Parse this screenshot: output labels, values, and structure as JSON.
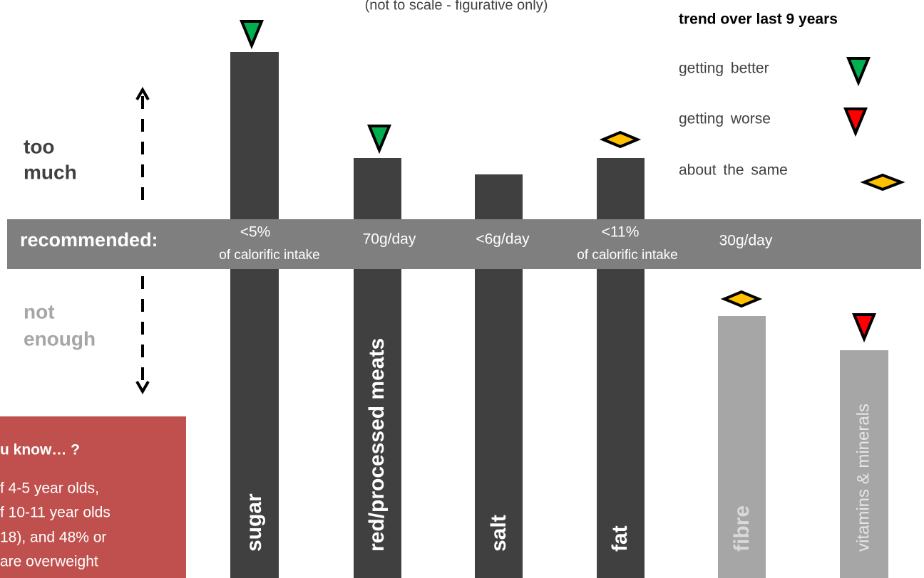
{
  "header": {
    "subtitle": "(not to scale - figurative only)"
  },
  "legend": {
    "title": "trend over last 9 years",
    "items": [
      "getting better",
      "getting worse",
      "about the same"
    ]
  },
  "axis_labels": {
    "too_much": [
      "too",
      "much"
    ],
    "not_enough": [
      "not",
      "enough"
    ]
  },
  "recommended": {
    "label": "recommended:",
    "items": [
      [
        "<5%",
        "of calorific intake"
      ],
      [
        "70g/day"
      ],
      [
        "<6g/day"
      ],
      [
        "<11%",
        "of calorific intake"
      ],
      [
        "30g/day"
      ]
    ]
  },
  "bars": [
    "sugar",
    "red/processed meats",
    "salt",
    "fat",
    "fibre",
    "vitamins & minerals"
  ],
  "note": {
    "title": "u know… ?",
    "lines": [
      "f 4-5 year olds,",
      "f 10-11 year olds",
      "18), and 48% or",
      "are overweight"
    ]
  }
}
